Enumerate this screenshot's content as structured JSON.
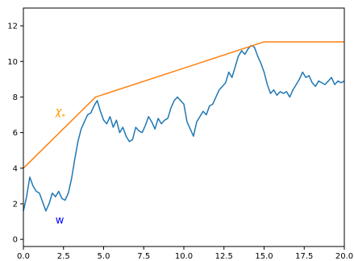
{
  "chart_data": {
    "type": "line",
    "xlim": [
      0,
      20
    ],
    "ylim": [
      -0.4,
      13
    ],
    "x_ticks": [
      0,
      2.5,
      5,
      7.5,
      10,
      12.5,
      15,
      17.5,
      20
    ],
    "x_tick_labels": [
      "0.0",
      "2.5",
      "5.0",
      "7.5",
      "10.0",
      "12.5",
      "15.0",
      "17.5",
      "20.0"
    ],
    "y_ticks": [
      0,
      2,
      4,
      6,
      8,
      10,
      12
    ],
    "y_tick_labels": [
      "0",
      "2",
      "4",
      "6",
      "8",
      "10",
      "12"
    ],
    "grid": false,
    "series": [
      {
        "name": "w",
        "color": "#1f77b4",
        "x": [
          0,
          0.2,
          0.4,
          0.6,
          0.8,
          1.0,
          1.2,
          1.4,
          1.6,
          1.8,
          2.0,
          2.2,
          2.4,
          2.6,
          2.8,
          3.0,
          3.2,
          3.4,
          3.6,
          3.8,
          4.0,
          4.2,
          4.4,
          4.6,
          4.8,
          5.0,
          5.2,
          5.4,
          5.6,
          5.8,
          6.0,
          6.2,
          6.4,
          6.6,
          6.8,
          7.0,
          7.2,
          7.4,
          7.6,
          7.8,
          8.0,
          8.2,
          8.4,
          8.6,
          8.8,
          9.0,
          9.2,
          9.4,
          9.6,
          9.8,
          10.0,
          10.2,
          10.4,
          10.6,
          10.8,
          11.0,
          11.2,
          11.4,
          11.6,
          11.8,
          12.0,
          12.2,
          12.4,
          12.6,
          12.8,
          13.0,
          13.2,
          13.4,
          13.6,
          13.8,
          14.0,
          14.2,
          14.4,
          14.6,
          14.8,
          15.0,
          15.2,
          15.4,
          15.6,
          15.8,
          16.0,
          16.2,
          16.4,
          16.6,
          16.8,
          17.0,
          17.2,
          17.4,
          17.6,
          17.8,
          18.0,
          18.2,
          18.4,
          18.6,
          18.8,
          19.0,
          19.2,
          19.4,
          19.6,
          19.8,
          20.0
        ],
        "y": [
          1.6,
          2.4,
          3.5,
          3.0,
          2.7,
          2.6,
          2.1,
          1.6,
          2.0,
          2.6,
          2.4,
          2.7,
          2.3,
          2.2,
          2.6,
          3.4,
          4.5,
          5.5,
          6.2,
          6.6,
          7.0,
          7.1,
          7.5,
          7.8,
          7.2,
          6.7,
          6.5,
          6.9,
          6.3,
          6.7,
          6.0,
          6.3,
          5.8,
          5.5,
          5.6,
          6.3,
          6.1,
          6.0,
          6.4,
          6.9,
          6.6,
          6.2,
          6.8,
          6.5,
          6.7,
          6.8,
          7.4,
          7.8,
          8.0,
          7.8,
          7.6,
          6.6,
          6.2,
          5.8,
          6.6,
          6.9,
          7.2,
          7.0,
          7.5,
          7.6,
          8.0,
          8.4,
          8.6,
          8.8,
          9.4,
          9.1,
          9.7,
          10.3,
          10.6,
          10.4,
          10.7,
          10.9,
          10.8,
          10.3,
          9.9,
          9.4,
          8.7,
          8.2,
          8.4,
          8.1,
          8.3,
          8.2,
          8.3,
          8.0,
          8.4,
          8.7,
          9.0,
          9.4,
          9.1,
          9.2,
          8.8,
          8.6,
          8.9,
          8.8,
          8.7,
          8.9,
          9.1,
          8.7,
          8.9,
          8.8,
          8.9
        ]
      },
      {
        "name": "χ*",
        "color": "#ff7f0e",
        "x": [
          0,
          4.5,
          15.0,
          20.0
        ],
        "y": [
          4.0,
          8.0,
          11.1,
          11.1
        ]
      }
    ],
    "annotations": [
      {
        "text": "w",
        "x": 2.0,
        "y": 0.9,
        "color": "#0000ff"
      },
      {
        "text": "χ",
        "sub": "*",
        "x": 2.0,
        "y": 7.0,
        "color": "#ff9900"
      }
    ]
  }
}
